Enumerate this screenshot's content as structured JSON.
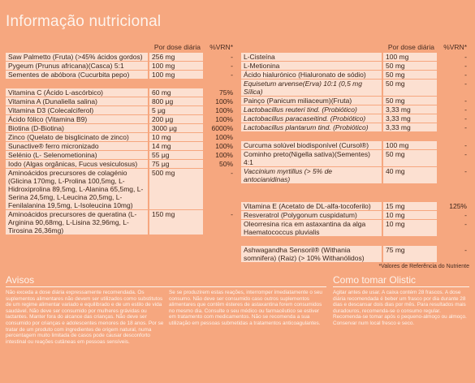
{
  "title": "Informação nutricional",
  "headers": {
    "per_dose": "Por dose diária",
    "vrn": "%VRN*"
  },
  "left_table": [
    {
      "name": "Saw Palmetto (Fruta) (>45% ácidos gordos)",
      "amount": "256 mg",
      "vrn": "-"
    },
    {
      "name": "Pygeum (Prunus africana)(Casca) 5:1",
      "amount": "100 mg",
      "vrn": "-"
    },
    {
      "name": "Sementes de abóbora (Cucurbita pepo)",
      "amount": "100 mg",
      "vrn": "-"
    },
    {
      "gap": true
    },
    {
      "name": "Vitamina C (Ácido L-ascórbico)",
      "amount": "60 mg",
      "vrn": "75%"
    },
    {
      "name": "Vitamina A (Dunaliella salina)",
      "amount": "800 μg",
      "vrn": "100%"
    },
    {
      "name": "Vitamina D3 (Colecalciferol)",
      "amount": "5 μg",
      "vrn": "100%"
    },
    {
      "name": "Ácido fólico (Vitamina B9)",
      "amount": "200 μg",
      "vrn": "100%"
    },
    {
      "name": "Biotina (D-Biotina)",
      "amount": "3000 μg",
      "vrn": "6000%"
    },
    {
      "name": "Zinco (Quelato de bisglicinato de zinco)",
      "amount": "10 mg",
      "vrn": "100%"
    },
    {
      "name": "Sunactive® ferro micronizado",
      "amount": "14 mg",
      "vrn": "100%"
    },
    {
      "name": "Selénio (L- Selenometionina)",
      "amount": "55 μg",
      "vrn": "100%"
    },
    {
      "name": "Iodo (Algas orgânicas, Fucus vesiculosus)",
      "amount": "75 μg",
      "vrn": "50%"
    },
    {
      "name": "Aminoácidos precursores de colagénio (Glicina 170mg, L-Prolina 100,5mg, L-Hidroxiprolina 89,5mg, L-Alanina 65,5mg, L-Serina 24,5mg, L-Leucina 20,5mg, L-Fenilalanina 19,5mg, L-Isoleucina 10mg)",
      "amount": "500 mg",
      "vrn": "-",
      "tall": 5
    },
    {
      "name": "Aminoácidos precursores de queratina (L-Arginina 90,68mg, L-Lisina 32,96mg, L-Tirosina 26,36mg)",
      "amount": "150 mg",
      "vrn": "-",
      "tall": 3
    }
  ],
  "right_table": [
    {
      "name": "L-Cisteína",
      "amount": "100 mg",
      "vrn": "-"
    },
    {
      "name": "L-Metionina",
      "amount": "50 mg",
      "vrn": "-"
    },
    {
      "name": "Ácido hialurónico (Hialuronato de sódio)",
      "amount": "50 mg",
      "vrn": "-"
    },
    {
      "name": "Equisetum arvense(Erva) 10:1 (0,5 mg Sílica)",
      "amount": "50 mg",
      "vrn": "-",
      "italic": true
    },
    {
      "name": "Painço (Panicum miliaceum)(Fruta)",
      "amount": "50 mg",
      "vrn": "-"
    },
    {
      "name": "Lactobacillus reuteri tind. (Probiótico)",
      "amount": "3,33 mg",
      "vrn": "-",
      "italic": true
    },
    {
      "name": "Lactobacillus paracaseitind. (Probiótico)",
      "amount": "3,33 mg",
      "vrn": "-",
      "italic": true
    },
    {
      "name": "Lactobacillus plantarum tind. (Probiótico)",
      "amount": "3,33 mg",
      "vrn": "-",
      "italic": true
    },
    {
      "gap": true
    },
    {
      "name": "Curcuma solúvel biodisponível (Cursol®)",
      "amount": "100 mg",
      "vrn": "-"
    },
    {
      "name": "Cominho preto(Nigella sativa)(Sementes) 4:1",
      "amount": "50 mg",
      "vrn": "-"
    },
    {
      "name": "Vaccinium myrtillus (> 5% de antocianidinas)",
      "amount": "40 mg",
      "vrn": "-",
      "italic": true
    },
    {
      "gap": true
    },
    {
      "gap": true
    },
    {
      "name": "Vitamina E (Acetato de DL-alfa-tocoferilo)",
      "amount": "15 mg",
      "vrn": "125%"
    },
    {
      "name": "Resveratrol (Polygonum cuspidatum)",
      "amount": "10 mg",
      "vrn": "-"
    },
    {
      "name": "Oleorresina rica em astaxantina da alga Haematococcus pluvialis",
      "amount": "10 mg",
      "vrn": "-",
      "tall": 2
    },
    {
      "gap": true
    },
    {
      "name": "Ashwagandha Sensoril® (Withania somnifera) (Raiz) (> 10% Withanólidos)",
      "amount": "75 mg",
      "vrn": "-",
      "tall": 2
    }
  ],
  "footnote": "*Valores de Referência do Nutriente",
  "avisos": {
    "title": "Avisos",
    "col1": "Não exceda a dose diária expressamente recomendada. Os suplementos alimentares não devem ser utilizados como substitutos de um regime alimentar variado e equilibrado e de um estilo de vida saudável. Não deve ser consumido por mulheres grávidas ou lactantes. Manter fora do alcance das crianças. Não deve ser consumido por crianças e adolescentes menores de 18 anos. Por se tratar de um produto com ingredientes de origem natural, numa percentagem muito limitada de casos pode causar desconforto intestinal ou reações cutâneas em pessoas sensíveis.",
    "col2": "Se se produzirem estas reações, interromper imediatamente o seu consumo. Não deve ser consumido caso outros suplementos alimentares que contêm ésteres de astaxantina forem consumidos no mesmo dia. Consulte o seu médico ou farmacêutico se estiver em tratamento com medicamentos. Não se recomenda a sua utilização em pessoas submetidas a tratamentos anticoagulantes."
  },
  "como_tomar": {
    "title": "Como tomar Olistic",
    "text": "Agitar antes de usar. A caixa contém 28 frascos. A dose diária recomendada é beber um frasco por dia durante 28 dias e descansar dois dias por mês. Para resultados mais duradouros, recomenda-se o consumo regular. Recomenda-se tomar após o pequeno-almoço ou almoço. Conservar num local fresco e seco."
  }
}
